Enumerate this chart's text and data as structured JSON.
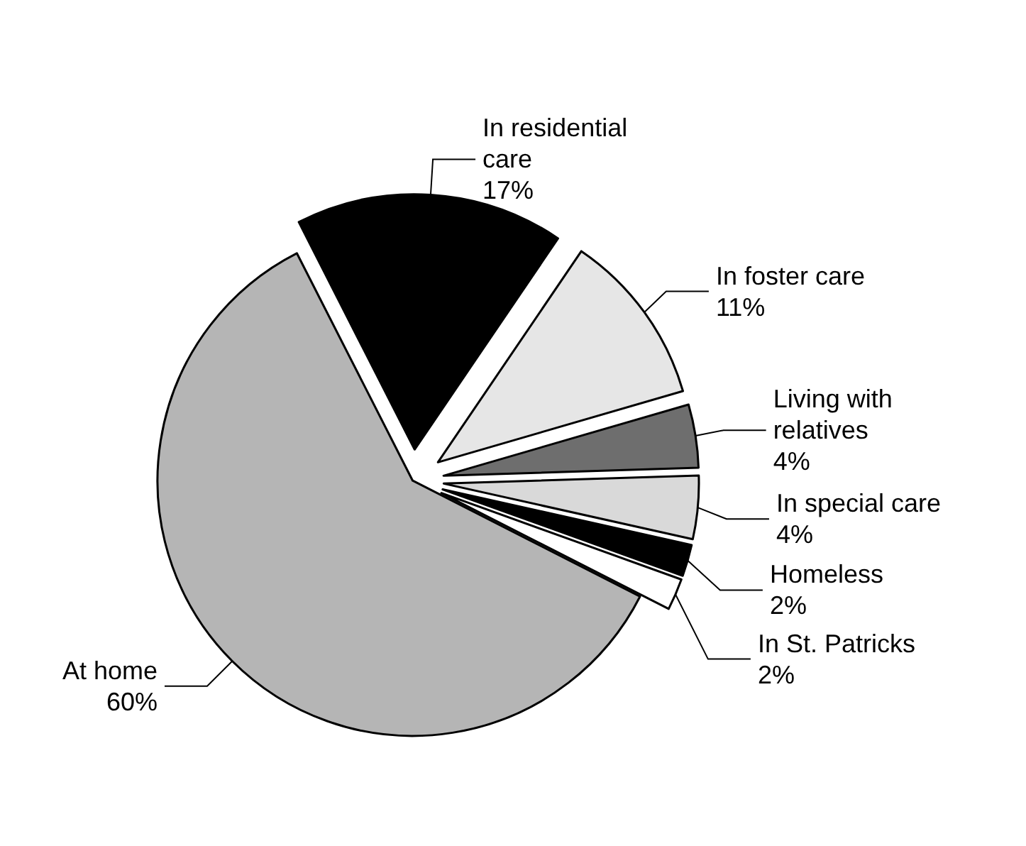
{
  "chart_data": {
    "type": "pie",
    "categories": [
      "In residential care",
      "In foster care",
      "Living with relatives",
      "In special care",
      "Homeless",
      "In St. Patricks",
      "At home"
    ],
    "values": [
      17,
      11,
      4,
      4,
      2,
      2,
      60
    ],
    "colors": [
      "#000000",
      "#e6e6e6",
      "#6e6e6e",
      "#d9d9d9",
      "#000000",
      "#ffffff",
      "#b5b5b5"
    ],
    "value_labels": [
      "17%",
      "11%",
      "4%",
      "4%",
      "2%",
      "2%",
      "60%"
    ]
  }
}
